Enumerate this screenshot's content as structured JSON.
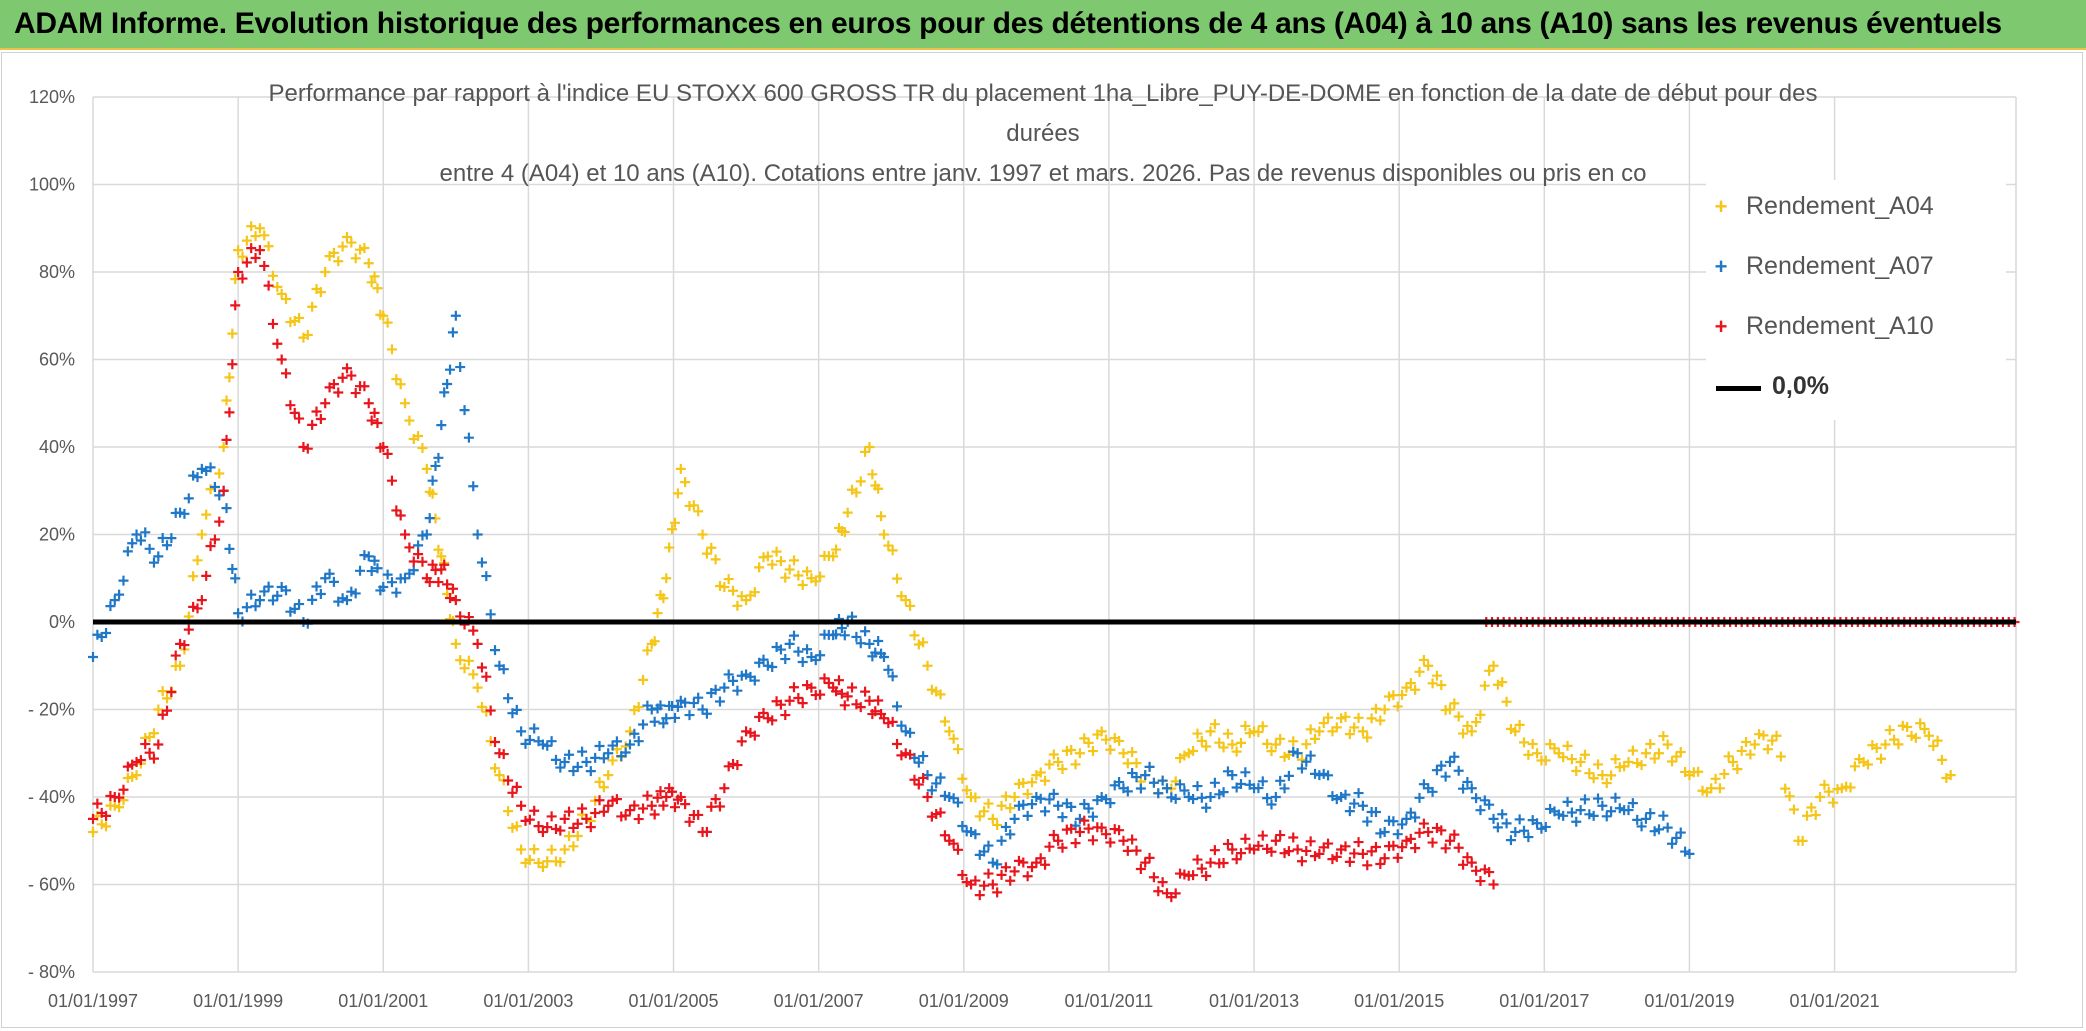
{
  "banner": {
    "text": "ADAM Informe. Evolution historique des performances en euros pour des détentions de 4 ans (A04) à 10 ans (A10) sans les revenus éventuels"
  },
  "colors": {
    "banner": "#7ec96f",
    "A04": "#f5c518",
    "A07": "#1f77c8",
    "A10": "#e8151c",
    "zero": "#000000"
  },
  "chart_data": {
    "type": "scatter",
    "title_lines": [
      "Performance par rapport à l'indice EU STOXX 600 GROSS TR  du placement 1ha_Libre_PUY-DE-DOME en fonction de la date de début pour des",
      "durées",
      "entre 4 (A04) et 10 ans (A10). Cotations entre janv. 1997 et mars. 2026. Pas de revenus disponibles ou pris en co"
    ],
    "y_tick_labels": [
      "120%",
      "100%",
      "80%",
      "60%",
      "40%",
      "20%",
      "0%",
      "- 20%",
      "- 40%",
      "- 60%",
      "- 80%"
    ],
    "y_ticks": [
      120,
      100,
      80,
      60,
      40,
      20,
      0,
      -20,
      -40,
      -60,
      -80
    ],
    "ylim": [
      -80,
      120
    ],
    "x_tick_labels": [
      "01/01/1997",
      "01/01/1999",
      "01/01/2001",
      "01/01/2003",
      "01/01/2005",
      "01/01/2007",
      "01/01/2009",
      "01/01/2011",
      "01/01/2013",
      "01/01/2015",
      "01/01/2017",
      "01/01/2019",
      "01/01/2021"
    ],
    "x_ticks": [
      1997,
      1999,
      2001,
      2003,
      2005,
      2007,
      2009,
      2011,
      2013,
      2015,
      2017,
      2019,
      2021
    ],
    "xlim": [
      1997,
      2023.5
    ],
    "zero_line": 0,
    "series": [
      {
        "name": "Rendement_A04",
        "key": "A04",
        "x": [
          1997.0,
          1997.3,
          1997.6,
          1997.9,
          1998.2,
          1998.5,
          1998.8,
          1999.0,
          1999.3,
          1999.6,
          1999.9,
          2000.2,
          2000.5,
          2000.8,
          2001.0,
          2001.3,
          2001.6,
          2001.8,
          2002.0,
          2002.3,
          2002.6,
          2002.9,
          2003.2,
          2003.5,
          2003.8,
          2004.1,
          2004.4,
          2004.7,
          2004.9,
          2005.1,
          2005.4,
          2005.7,
          2006.0,
          2006.3,
          2006.6,
          2006.9,
          2007.2,
          2007.4,
          2007.7,
          2007.9,
          2008.2,
          2008.5,
          2008.8,
          2009.1,
          2009.4,
          2009.7,
          2010.0,
          2010.3,
          2010.6,
          2010.9,
          2011.2,
          2011.5,
          2011.8,
          2012.1,
          2012.4,
          2012.7,
          2013.0,
          2013.3,
          2013.6,
          2013.9,
          2014.2,
          2014.5,
          2014.8,
          2015.1,
          2015.4,
          2015.7,
          2016.0,
          2016.3,
          2016.6,
          2016.9,
          2017.2,
          2017.5,
          2017.8,
          2018.1,
          2018.4,
          2018.7,
          2019.0,
          2019.3,
          2019.6,
          2019.9,
          2020.2,
          2020.5,
          2020.8,
          2021.1,
          2021.4,
          2021.7,
          2022.0,
          2022.3,
          2022.6
        ],
        "y": [
          -48,
          -42,
          -35,
          -20,
          -10,
          20,
          40,
          85,
          90,
          75,
          65,
          80,
          88,
          82,
          70,
          50,
          35,
          15,
          -5,
          -15,
          -35,
          -52,
          -56,
          -52,
          -45,
          -35,
          -25,
          -5,
          10,
          35,
          20,
          8,
          5,
          15,
          12,
          10,
          15,
          25,
          40,
          20,
          5,
          -10,
          -25,
          -40,
          -45,
          -40,
          -35,
          -32,
          -30,
          -25,
          -30,
          -35,
          -38,
          -30,
          -25,
          -28,
          -25,
          -28,
          -30,
          -25,
          -22,
          -25,
          -20,
          -15,
          -10,
          -20,
          -25,
          -10,
          -25,
          -30,
          -30,
          -32,
          -35,
          -33,
          -30,
          -28,
          -35,
          -38,
          -32,
          -28,
          -26,
          -50,
          -40,
          -38,
          -32,
          -28,
          -24,
          -26,
          -35
        ]
      },
      {
        "name": "Rendement_A07",
        "key": "A07",
        "x": [
          1997.0,
          1997.3,
          1997.6,
          1997.9,
          1998.2,
          1998.5,
          1998.8,
          1999.0,
          1999.3,
          1999.6,
          1999.9,
          2000.2,
          2000.5,
          2000.8,
          2001.0,
          2001.3,
          2001.6,
          2001.8,
          2002.0,
          2002.3,
          2002.6,
          2002.9,
          2003.2,
          2003.5,
          2003.8,
          2004.1,
          2004.4,
          2004.7,
          2004.9,
          2005.1,
          2005.4,
          2005.7,
          2006.0,
          2006.3,
          2006.6,
          2006.9,
          2007.2,
          2007.4,
          2007.7,
          2007.9,
          2008.2,
          2008.5,
          2008.8,
          2009.1,
          2009.4,
          2009.7,
          2010.0,
          2010.3,
          2010.6,
          2010.9,
          2011.2,
          2011.5,
          2011.8,
          2012.1,
          2012.4,
          2012.7,
          2013.0,
          2013.3,
          2013.6,
          2013.9,
          2014.2,
          2014.5,
          2014.8,
          2015.1,
          2015.4,
          2015.7,
          2016.0,
          2016.3,
          2016.6,
          2016.9,
          2017.2,
          2017.5,
          2017.8,
          2018.1,
          2018.4,
          2018.7,
          2019.0
        ],
        "y": [
          -8,
          5,
          20,
          15,
          25,
          35,
          30,
          2,
          5,
          8,
          0,
          10,
          5,
          15,
          8,
          10,
          20,
          45,
          70,
          20,
          -10,
          -25,
          -28,
          -32,
          -32,
          -30,
          -28,
          -20,
          -22,
          -18,
          -20,
          -15,
          -12,
          -10,
          -5,
          -8,
          -3,
          0,
          -5,
          -8,
          -25,
          -35,
          -40,
          -48,
          -55,
          -45,
          -40,
          -42,
          -45,
          -40,
          -38,
          -35,
          -38,
          -40,
          -40,
          -35,
          -38,
          -40,
          -30,
          -35,
          -40,
          -42,
          -48,
          -45,
          -38,
          -32,
          -38,
          -45,
          -48,
          -46,
          -44,
          -43,
          -42,
          -43,
          -45,
          -47,
          -53
        ]
      },
      {
        "name": "Rendement_A10",
        "key": "A10",
        "x": [
          1997.0,
          1997.3,
          1997.6,
          1997.9,
          1998.2,
          1998.5,
          1998.8,
          1999.0,
          1999.3,
          1999.6,
          1999.9,
          2000.2,
          2000.5,
          2000.8,
          2001.0,
          2001.3,
          2001.6,
          2001.8,
          2002.0,
          2002.3,
          2002.6,
          2002.9,
          2003.2,
          2003.5,
          2003.8,
          2004.1,
          2004.4,
          2004.7,
          2004.9,
          2005.1,
          2005.4,
          2005.7,
          2006.0,
          2006.3,
          2006.6,
          2006.9,
          2007.2,
          2007.4,
          2007.7,
          2007.9,
          2008.2,
          2008.5,
          2008.8,
          2009.1,
          2009.4,
          2009.7,
          2010.0,
          2010.3,
          2010.6,
          2010.9,
          2011.2,
          2011.5,
          2011.8,
          2012.1,
          2012.4,
          2012.7,
          2013.0,
          2013.3,
          2013.6,
          2013.9,
          2014.2,
          2014.5,
          2014.8,
          2015.1,
          2015.4,
          2015.7,
          2016.0,
          2016.3
        ],
        "y": [
          -45,
          -40,
          -32,
          -28,
          -5,
          5,
          30,
          80,
          85,
          60,
          40,
          50,
          58,
          50,
          40,
          20,
          10,
          12,
          5,
          -5,
          -30,
          -42,
          -48,
          -45,
          -45,
          -42,
          -43,
          -42,
          -40,
          -40,
          -48,
          -38,
          -25,
          -22,
          -18,
          -15,
          -15,
          -17,
          -18,
          -22,
          -30,
          -40,
          -50,
          -60,
          -60,
          -57,
          -55,
          -50,
          -48,
          -47,
          -50,
          -55,
          -62,
          -58,
          -55,
          -52,
          -52,
          -50,
          -52,
          -53,
          -52,
          -53,
          -54,
          -50,
          -48,
          -50,
          -55,
          -60
        ]
      },
      {
        "name": "0,0%",
        "key": "zero",
        "x": [
          1997.0,
          2023.5
        ],
        "y": [
          0,
          0
        ]
      }
    ],
    "flat_zero_markers": {
      "key": "A10",
      "from": 2016.2,
      "to": 2023.5,
      "value": 0
    },
    "legend": [
      "Rendement_A04",
      "Rendement_A07",
      "Rendement_A10",
      "0,0%"
    ],
    "legend_position": "top-right",
    "grid": true
  }
}
